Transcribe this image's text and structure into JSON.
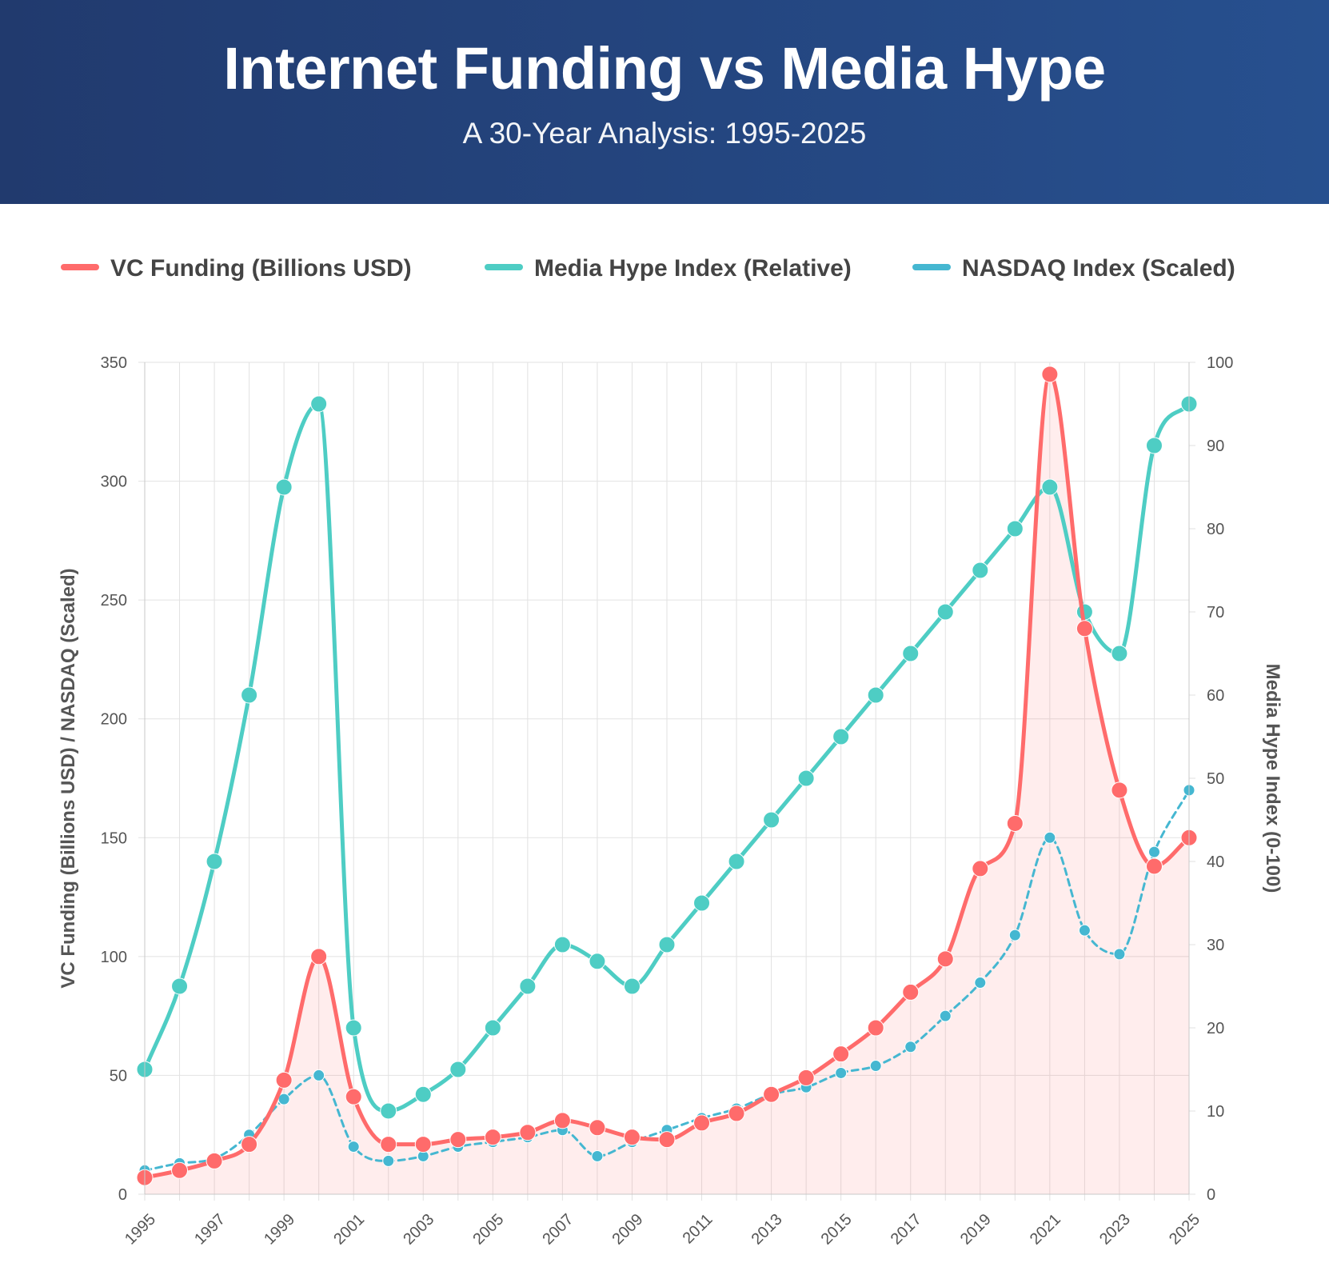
{
  "header": {
    "title": "Internet Funding vs Media Hype",
    "subtitle": "A 30-Year Analysis: 1995-2025"
  },
  "chart_data": {
    "type": "line",
    "x": [
      1995,
      1996,
      1997,
      1998,
      1999,
      2000,
      2001,
      2002,
      2003,
      2004,
      2005,
      2006,
      2007,
      2008,
      2009,
      2010,
      2011,
      2012,
      2013,
      2014,
      2015,
      2016,
      2017,
      2018,
      2019,
      2020,
      2021,
      2022,
      2023,
      2024,
      2025
    ],
    "x_tick_labels": [
      "1995",
      "1997",
      "1999",
      "2001",
      "2003",
      "2005",
      "2007",
      "2009",
      "2011",
      "2013",
      "2015",
      "2017",
      "2019",
      "2021",
      "2023",
      "2025"
    ],
    "series": [
      {
        "name": "VC Funding (Billions USD)",
        "axis": "left",
        "color": "#ff6b6b",
        "style": "solid",
        "fill": true,
        "values": [
          7,
          10,
          14,
          21,
          48,
          100,
          41,
          21,
          21,
          23,
          24,
          26,
          31,
          28,
          24,
          23,
          30,
          34,
          42,
          49,
          59,
          70,
          85,
          99,
          137,
          156,
          345,
          238,
          170,
          138,
          150
        ]
      },
      {
        "name": "Media Hype Index (Relative)",
        "axis": "right",
        "color": "#4ecdc4",
        "style": "solid",
        "fill": false,
        "values": [
          15,
          25,
          40,
          60,
          85,
          95,
          20,
          10,
          12,
          15,
          20,
          25,
          30,
          28,
          25,
          30,
          35,
          40,
          45,
          50,
          55,
          60,
          65,
          70,
          75,
          80,
          85,
          70,
          65,
          90,
          95
        ]
      },
      {
        "name": "NASDAQ Index (Scaled)",
        "axis": "left",
        "color": "#45b7d1",
        "style": "dashed",
        "fill": false,
        "values": [
          10,
          13,
          15,
          25,
          40,
          50,
          20,
          14,
          16,
          20,
          22,
          24,
          27,
          16,
          22,
          27,
          32,
          36,
          42,
          45,
          51,
          54,
          62,
          75,
          89,
          109,
          150,
          111,
          101,
          144,
          170
        ]
      }
    ],
    "y_left": {
      "label": "VC Funding (Billions USD) / NASDAQ (Scaled)",
      "range": [
        0,
        350
      ],
      "ticks": [
        "0",
        "50",
        "100",
        "150",
        "200",
        "250",
        "300",
        "350"
      ]
    },
    "y_right": {
      "label": "Media Hype Index (0-100)",
      "range": [
        0,
        100
      ],
      "ticks": [
        "0",
        "10",
        "20",
        "30",
        "40",
        "50",
        "60",
        "70",
        "80",
        "90",
        "100"
      ]
    },
    "grid": true,
    "legend_position": "top"
  }
}
